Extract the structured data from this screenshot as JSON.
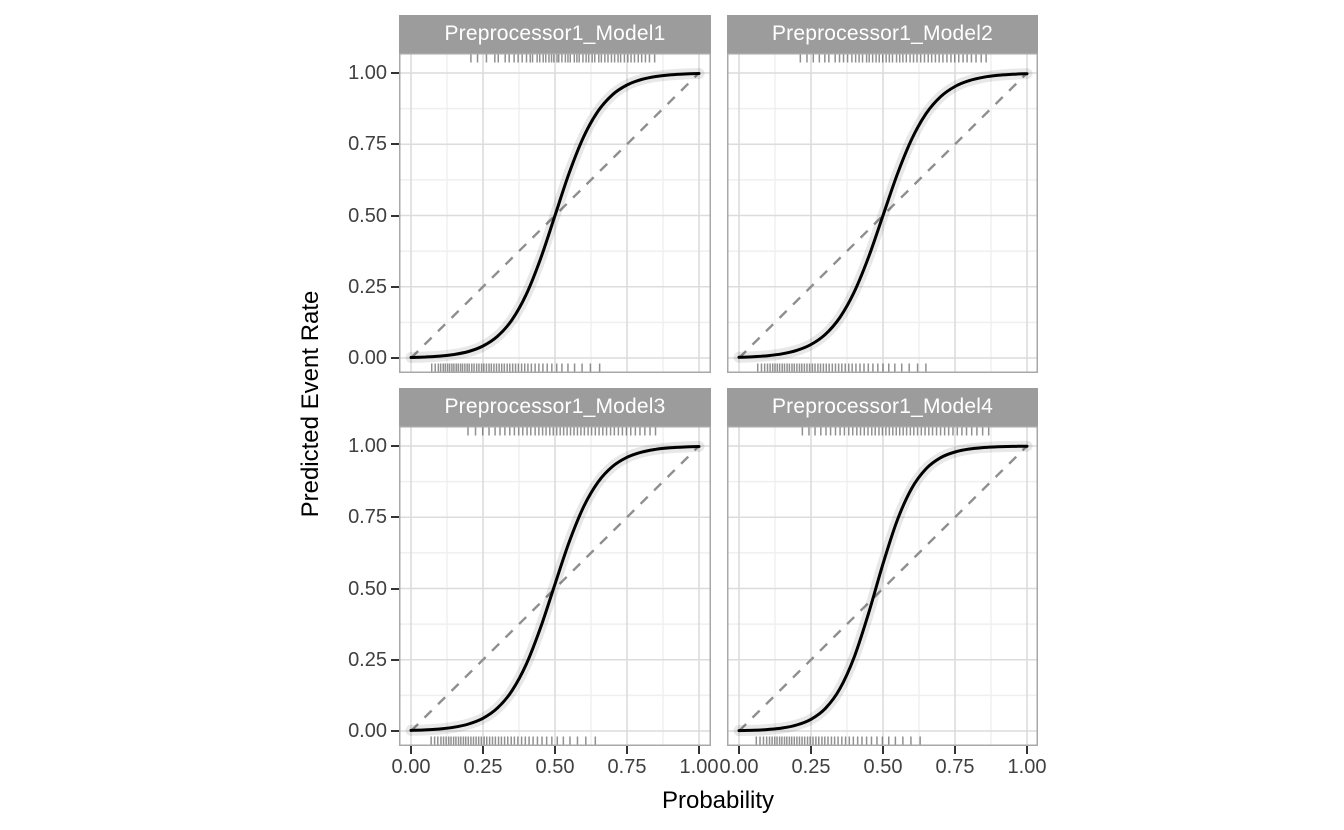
{
  "figure": {
    "x_axis_title": "Probability",
    "y_axis_title": "Predicted Event Rate",
    "colors": {
      "strip_bg": "#9c9c9c",
      "strip_text": "#ffffff",
      "panel_bg": "#ffffff",
      "grid_major": "#dcdcdc",
      "grid_minor": "#efefef",
      "panel_border": "#a8a8a8",
      "tick_text": "#404040",
      "tick_mark": "#333333",
      "curve": "#000000",
      "ribbon": "rgba(0,0,0,0.09)",
      "diagonal": "#8f8f8f",
      "rug": "rgba(70,70,70,0.6)"
    },
    "axis": {
      "x_tick_labels": [
        "0.00",
        "0.25",
        "0.50",
        "0.75",
        "1.00"
      ],
      "x_tick_values": [
        0,
        0.25,
        0.5,
        0.75,
        1
      ],
      "y_tick_labels": [
        "0.00",
        "0.25",
        "0.50",
        "0.75",
        "1.00"
      ],
      "y_tick_values": [
        0,
        0.25,
        0.5,
        0.75,
        1
      ],
      "minor_values": [
        0.125,
        0.375,
        0.625,
        0.875
      ]
    }
  },
  "chart_data": {
    "type": "line",
    "title": "",
    "xlabel": "Probability",
    "ylabel": "Predicted Event Rate",
    "xlim": [
      0,
      1
    ],
    "ylim": [
      0,
      1
    ],
    "grid": true,
    "diagonal_reference": {
      "from": [
        0,
        0
      ],
      "to": [
        1,
        1
      ],
      "style": "dashed"
    },
    "curve_x": [
      0,
      0.05,
      0.1,
      0.15,
      0.2,
      0.25,
      0.3,
      0.35,
      0.4,
      0.45,
      0.5,
      0.55,
      0.6,
      0.65,
      0.7,
      0.75,
      0.8,
      0.85,
      0.9,
      0.95,
      1
    ],
    "facets": [
      {
        "title": "Preprocessor1_Model1",
        "curve_y": [
          0.0019,
          0.0036,
          0.0067,
          0.0124,
          0.0229,
          0.042,
          0.0759,
          0.133,
          0.2227,
          0.3486,
          0.5,
          0.6514,
          0.7773,
          0.867,
          0.9241,
          0.958,
          0.9771,
          0.9876,
          0.9933,
          0.9964,
          0.9981
        ],
        "rug_top": [
          0.208,
          0.231,
          0.262,
          0.291,
          0.303,
          0.327,
          0.341,
          0.358,
          0.372,
          0.386,
          0.401,
          0.414,
          0.422,
          0.438,
          0.447,
          0.459,
          0.468,
          0.479,
          0.488,
          0.496,
          0.507,
          0.513,
          0.524,
          0.536,
          0.545,
          0.553,
          0.567,
          0.576,
          0.584,
          0.597,
          0.608,
          0.617,
          0.629,
          0.638,
          0.652,
          0.661,
          0.673,
          0.684,
          0.696,
          0.707,
          0.719,
          0.728,
          0.741,
          0.753,
          0.764,
          0.776,
          0.789,
          0.801,
          0.814,
          0.828,
          0.846
        ],
        "rug_bottom": [
          0.072,
          0.084,
          0.095,
          0.103,
          0.112,
          0.119,
          0.127,
          0.134,
          0.142,
          0.149,
          0.157,
          0.164,
          0.172,
          0.179,
          0.187,
          0.195,
          0.202,
          0.211,
          0.219,
          0.228,
          0.236,
          0.245,
          0.253,
          0.262,
          0.271,
          0.279,
          0.288,
          0.297,
          0.306,
          0.315,
          0.324,
          0.334,
          0.343,
          0.353,
          0.363,
          0.373,
          0.384,
          0.395,
          0.406,
          0.418,
          0.431,
          0.444,
          0.458,
          0.473,
          0.489,
          0.506,
          0.524,
          0.545,
          0.568,
          0.594,
          0.623,
          0.655
        ]
      },
      {
        "title": "Preprocessor1_Model2",
        "curve_y": [
          0.0025,
          0.0045,
          0.0082,
          0.0148,
          0.0266,
          0.0474,
          0.0832,
          0.1419,
          0.2315,
          0.3543,
          0.5,
          0.6457,
          0.7685,
          0.8581,
          0.9168,
          0.9526,
          0.9734,
          0.9852,
          0.9918,
          0.9955,
          0.9975
        ],
        "rug_top": [
          0.213,
          0.236,
          0.258,
          0.279,
          0.298,
          0.312,
          0.334,
          0.349,
          0.363,
          0.377,
          0.392,
          0.405,
          0.417,
          0.429,
          0.443,
          0.452,
          0.464,
          0.476,
          0.487,
          0.499,
          0.511,
          0.522,
          0.533,
          0.547,
          0.558,
          0.569,
          0.581,
          0.594,
          0.606,
          0.618,
          0.631,
          0.644,
          0.657,
          0.669,
          0.682,
          0.695,
          0.708,
          0.722,
          0.736,
          0.749,
          0.763,
          0.778,
          0.792,
          0.807,
          0.823,
          0.841,
          0.858
        ],
        "rug_bottom": [
          0.065,
          0.078,
          0.089,
          0.099,
          0.108,
          0.117,
          0.125,
          0.133,
          0.141,
          0.15,
          0.158,
          0.167,
          0.175,
          0.184,
          0.192,
          0.201,
          0.21,
          0.218,
          0.227,
          0.236,
          0.245,
          0.255,
          0.264,
          0.274,
          0.283,
          0.293,
          0.303,
          0.313,
          0.324,
          0.335,
          0.346,
          0.357,
          0.369,
          0.381,
          0.393,
          0.406,
          0.42,
          0.434,
          0.449,
          0.465,
          0.482,
          0.5,
          0.52,
          0.541,
          0.565,
          0.591,
          0.62,
          0.649
        ]
      },
      {
        "title": "Preprocessor1_Model3",
        "curve_y": [
          0.0021,
          0.0038,
          0.0071,
          0.0132,
          0.0244,
          0.0447,
          0.0803,
          0.1404,
          0.2337,
          0.363,
          0.5156,
          0.6654,
          0.7879,
          0.8741,
          0.9284,
          0.9604,
          0.9784,
          0.9883,
          0.9937,
          0.9966,
          0.9982
        ],
        "rug_top": [
          0.198,
          0.224,
          0.249,
          0.271,
          0.292,
          0.309,
          0.326,
          0.343,
          0.359,
          0.374,
          0.388,
          0.403,
          0.416,
          0.431,
          0.444,
          0.457,
          0.469,
          0.482,
          0.494,
          0.506,
          0.518,
          0.53,
          0.542,
          0.554,
          0.566,
          0.578,
          0.59,
          0.602,
          0.615,
          0.627,
          0.64,
          0.653,
          0.666,
          0.679,
          0.693,
          0.706,
          0.72,
          0.734,
          0.748,
          0.763,
          0.779,
          0.795,
          0.812,
          0.83,
          0.849
        ],
        "rug_bottom": [
          0.07,
          0.082,
          0.093,
          0.104,
          0.113,
          0.122,
          0.131,
          0.139,
          0.148,
          0.156,
          0.165,
          0.173,
          0.182,
          0.19,
          0.199,
          0.208,
          0.217,
          0.226,
          0.235,
          0.244,
          0.254,
          0.263,
          0.273,
          0.283,
          0.293,
          0.304,
          0.314,
          0.325,
          0.336,
          0.348,
          0.359,
          0.371,
          0.384,
          0.397,
          0.41,
          0.424,
          0.439,
          0.455,
          0.471,
          0.489,
          0.508,
          0.529,
          0.552,
          0.578,
          0.607,
          0.64
        ]
      },
      {
        "title": "Preprocessor1_Model4",
        "curve_y": [
          0.0013,
          0.0026,
          0.0052,
          0.0105,
          0.0209,
          0.0411,
          0.0794,
          0.148,
          0.2592,
          0.4134,
          0.5866,
          0.7408,
          0.852,
          0.9206,
          0.9589,
          0.9791,
          0.9895,
          0.9948,
          0.9974,
          0.9987,
          0.9994
        ],
        "rug_top": [
          0.22,
          0.243,
          0.264,
          0.284,
          0.302,
          0.318,
          0.335,
          0.351,
          0.366,
          0.381,
          0.395,
          0.409,
          0.422,
          0.435,
          0.448,
          0.461,
          0.473,
          0.486,
          0.498,
          0.51,
          0.522,
          0.534,
          0.546,
          0.558,
          0.57,
          0.582,
          0.595,
          0.607,
          0.62,
          0.633,
          0.646,
          0.659,
          0.672,
          0.686,
          0.7,
          0.714,
          0.728,
          0.743,
          0.758,
          0.774,
          0.79,
          0.808,
          0.826,
          0.846,
          0.867
        ],
        "rug_bottom": [
          0.06,
          0.073,
          0.085,
          0.096,
          0.106,
          0.115,
          0.124,
          0.132,
          0.141,
          0.149,
          0.158,
          0.166,
          0.175,
          0.183,
          0.192,
          0.201,
          0.21,
          0.219,
          0.228,
          0.238,
          0.247,
          0.257,
          0.267,
          0.277,
          0.288,
          0.298,
          0.309,
          0.321,
          0.332,
          0.344,
          0.357,
          0.37,
          0.383,
          0.397,
          0.412,
          0.427,
          0.443,
          0.46,
          0.479,
          0.498,
          0.52,
          0.543,
          0.569,
          0.597,
          0.629
        ]
      }
    ]
  }
}
